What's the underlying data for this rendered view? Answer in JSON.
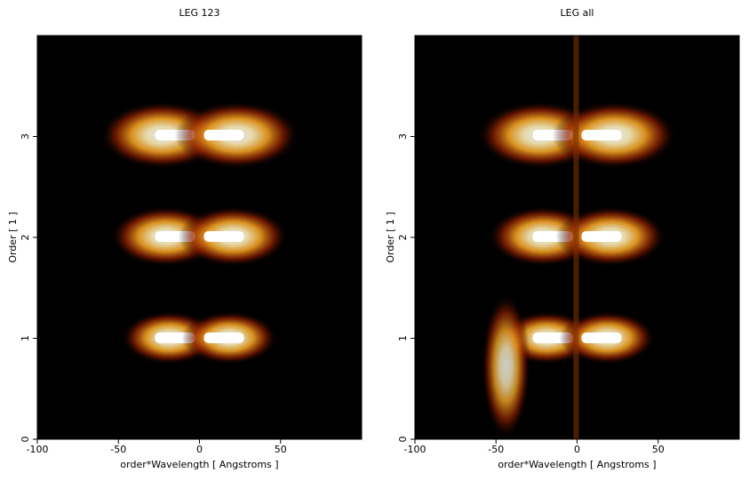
{
  "chart_data": [
    {
      "type": "heatmap",
      "title": "LEG 123",
      "xlabel": "order*Wavelength [ Angstroms ]",
      "ylabel": "Order [ 1 ]",
      "xlim": [
        -100,
        100
      ],
      "ylim": [
        0,
        4
      ],
      "xticks": [
        -100,
        -50,
        0,
        50
      ],
      "yticks": [
        0,
        1,
        2,
        3
      ]
    },
    {
      "type": "heatmap",
      "title": "LEG all",
      "xlabel": "order*Wavelength [ Angstroms ]",
      "ylabel": "Order [ 1 ]",
      "xlim": [
        -100,
        100
      ],
      "ylim": [
        0,
        4
      ],
      "xticks": [
        -100,
        -50,
        0,
        50
      ],
      "yticks": [
        0,
        1,
        2,
        3
      ]
    }
  ]
}
